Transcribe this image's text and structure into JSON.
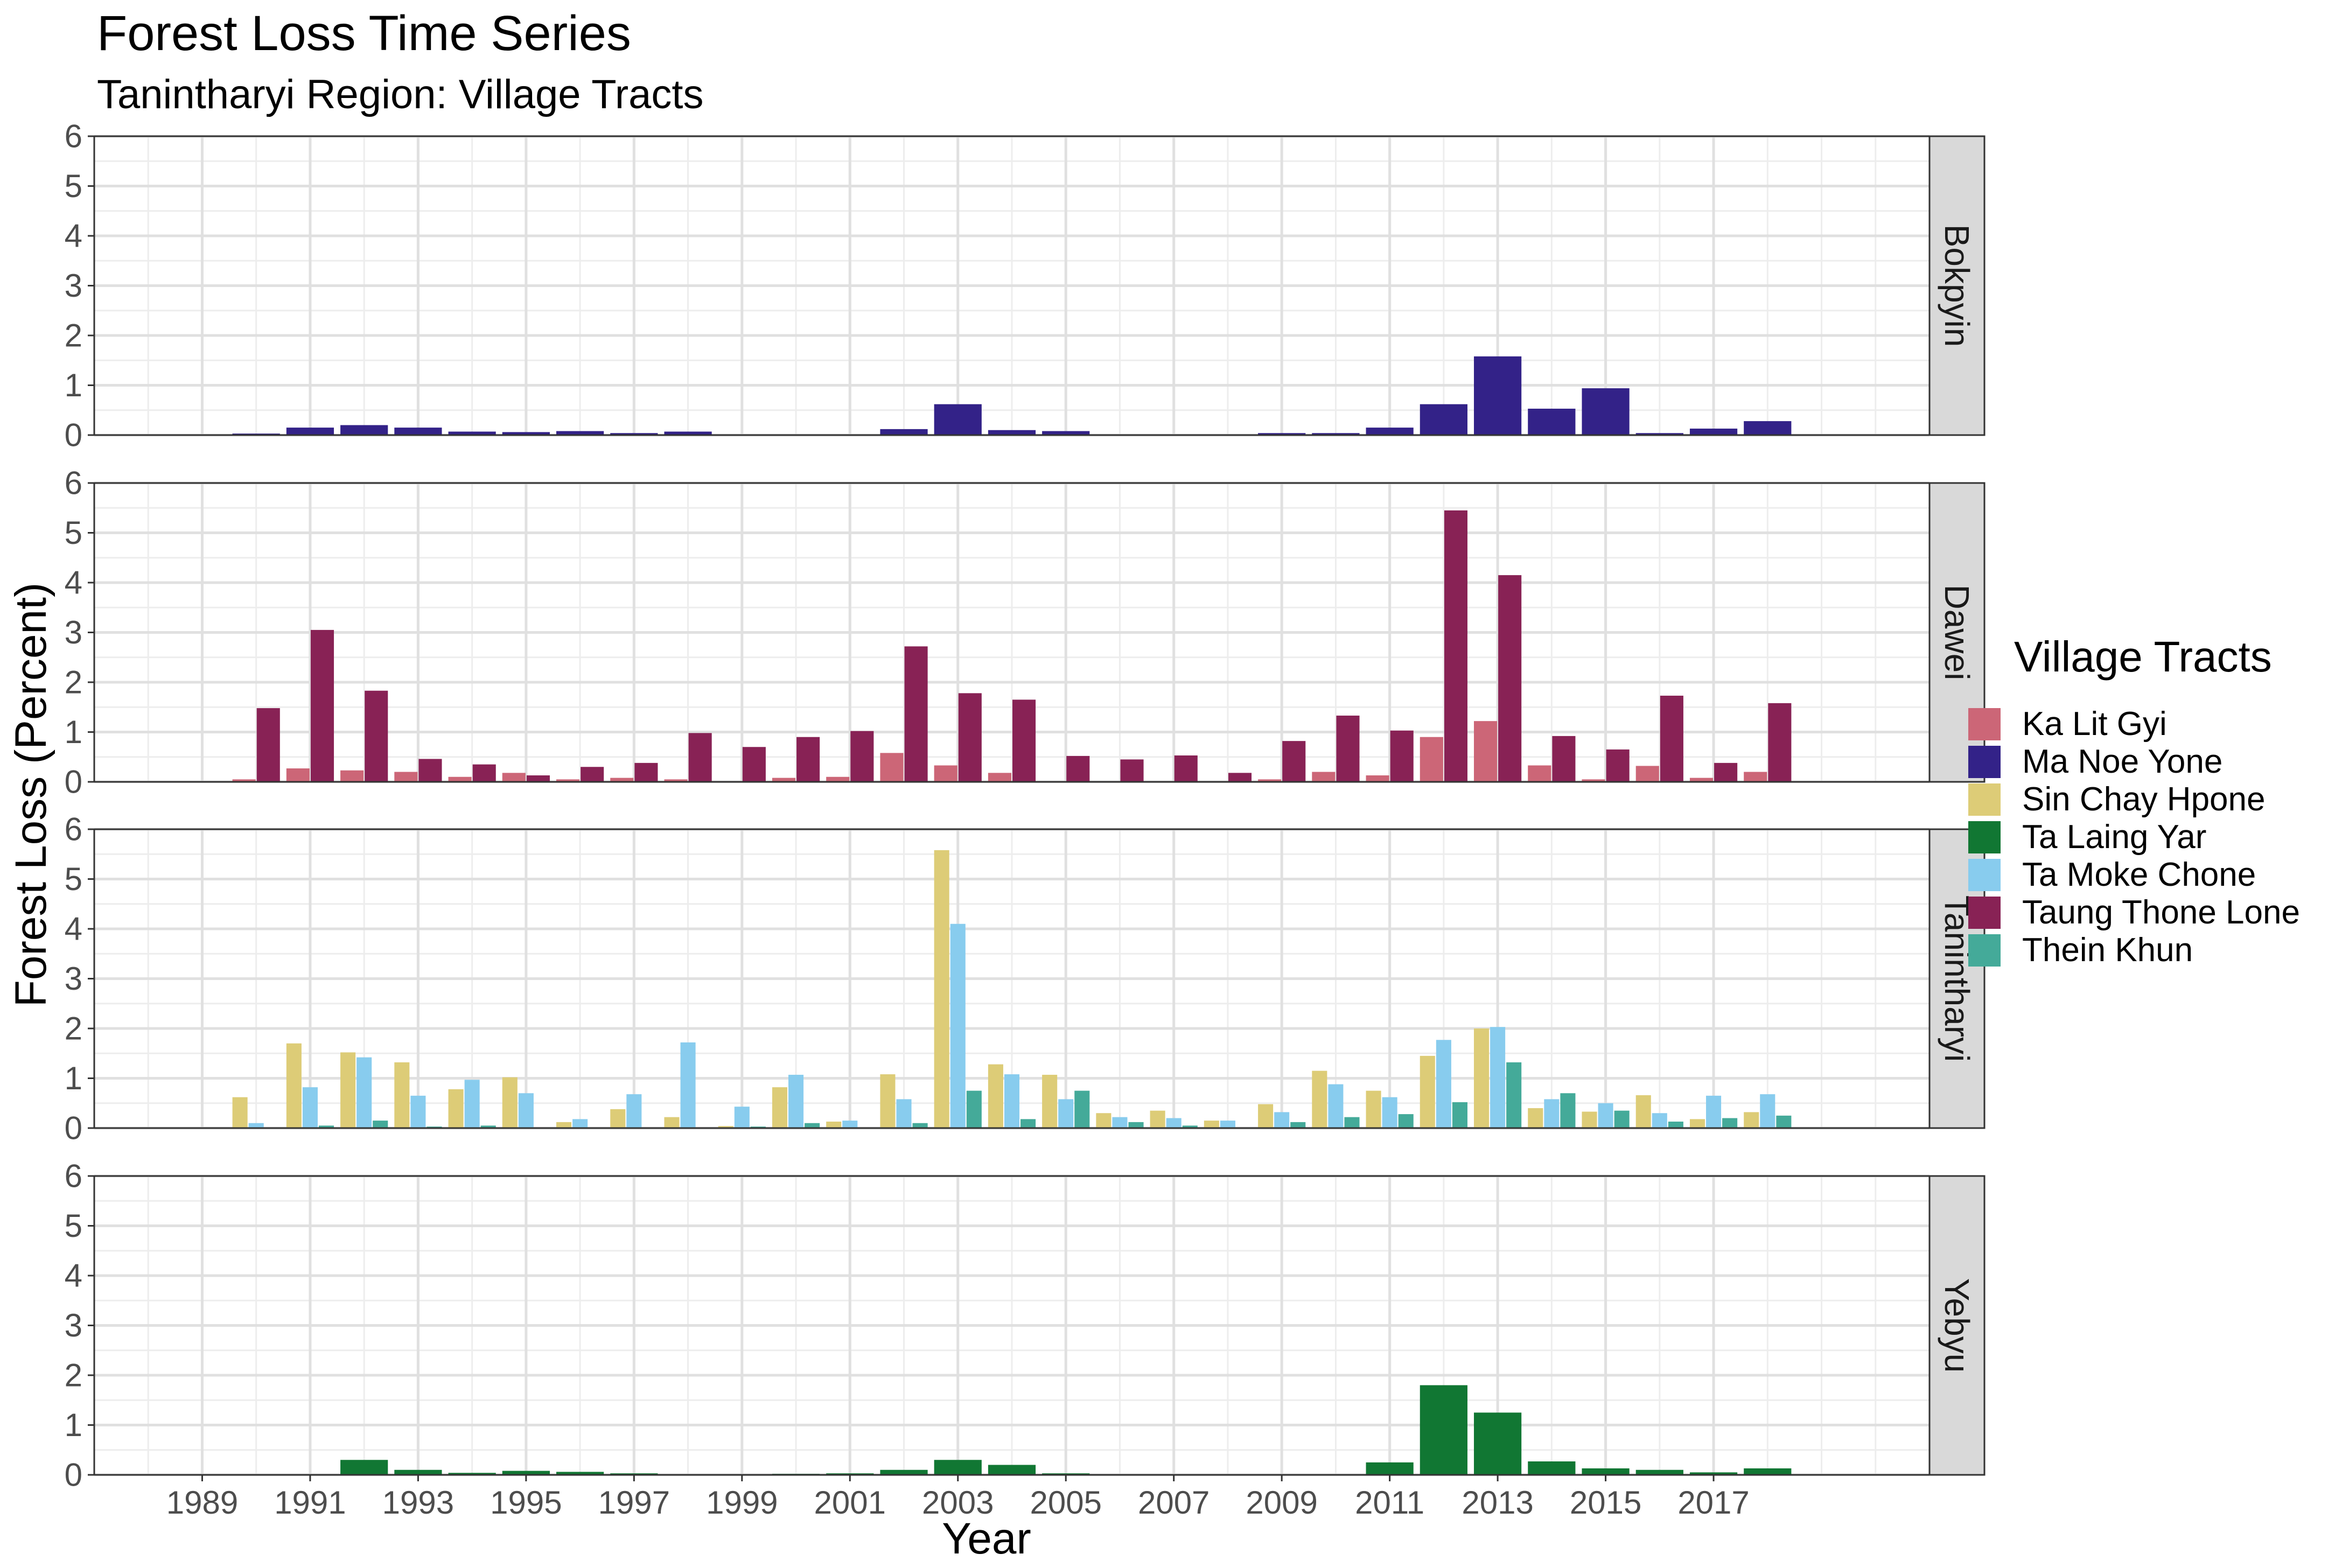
{
  "chart_data": {
    "type": "bar",
    "title": "Forest Loss Time Series",
    "subtitle": "Tanintharyi Region: Village Tracts",
    "xlabel": "Year",
    "ylabel": "Forest Loss (Percent)",
    "x_tick_labels": [
      "1989",
      "1991",
      "1993",
      "1995",
      "1997",
      "1999",
      "2001",
      "2003",
      "2005",
      "2007",
      "2009",
      "2011",
      "2013",
      "2015",
      "2017"
    ],
    "y_tick_labels": [
      "0",
      "1",
      "2",
      "3",
      "4",
      "5",
      "6"
    ],
    "ylim": [
      0,
      6
    ],
    "xlim": [
      1987,
      2021
    ],
    "grid": true,
    "legend": {
      "title": "Village Tracts",
      "position": "right"
    },
    "series": [
      {
        "name": "Ka Lit Gyi",
        "color": "#CC6677"
      },
      {
        "name": "Ma Noe Yone",
        "color": "#332288"
      },
      {
        "name": "Sin Chay Hpone",
        "color": "#DDCC77"
      },
      {
        "name": "Ta Laing Yar",
        "color": "#117733"
      },
      {
        "name": "Ta Moke Chone",
        "color": "#88CCEE"
      },
      {
        "name": "Taung Thone Lone",
        "color": "#882255"
      },
      {
        "name": "Thein Khun",
        "color": "#44AA99"
      }
    ],
    "facets": [
      {
        "name": "Bokpyin",
        "bars": [
          {
            "series": "Ma Noe Yone",
            "years": [
              1990,
              1991,
              1992,
              1993,
              1994,
              1995,
              1996,
              1997,
              1998,
              2002,
              2003,
              2004,
              2005,
              2009,
              2010,
              2011,
              2012,
              2013,
              2014,
              2015,
              2016,
              2017,
              2018
            ],
            "values": [
              0.03,
              0.15,
              0.2,
              0.15,
              0.07,
              0.06,
              0.08,
              0.04,
              0.07,
              0.12,
              0.62,
              0.1,
              0.08,
              0.04,
              0.04,
              0.15,
              0.62,
              1.58,
              0.53,
              0.94,
              0.04,
              0.13,
              0.28
            ]
          }
        ]
      },
      {
        "name": "Dawei",
        "bars": [
          {
            "series": "Ka Lit Gyi",
            "years": [
              1990,
              1991,
              1992,
              1993,
              1994,
              1995,
              1996,
              1997,
              1998,
              2000,
              2001,
              2002,
              2003,
              2004,
              2009,
              2010,
              2011,
              2012,
              2013,
              2014,
              2015,
              2016,
              2017,
              2018
            ],
            "values": [
              0.05,
              0.27,
              0.23,
              0.2,
              0.1,
              0.18,
              0.05,
              0.08,
              0.05,
              0.08,
              0.1,
              0.58,
              0.33,
              0.18,
              0.05,
              0.2,
              0.13,
              0.9,
              1.22,
              0.33,
              0.05,
              0.32,
              0.08,
              0.2
            ]
          },
          {
            "series": "Taung Thone Lone",
            "years": [
              1990,
              1991,
              1992,
              1993,
              1994,
              1995,
              1996,
              1997,
              1998,
              1999,
              2000,
              2001,
              2002,
              2003,
              2004,
              2005,
              2006,
              2007,
              2008,
              2009,
              2010,
              2011,
              2012,
              2013,
              2014,
              2015,
              2016,
              2017,
              2018
            ],
            "values": [
              1.48,
              3.05,
              1.83,
              0.46,
              0.35,
              0.13,
              0.3,
              0.38,
              0.98,
              0.7,
              0.9,
              1.02,
              2.72,
              1.78,
              1.65,
              0.52,
              0.45,
              0.53,
              0.18,
              0.82,
              1.33,
              1.03,
              5.45,
              4.15,
              0.92,
              0.65,
              1.73,
              0.38,
              1.58
            ]
          }
        ]
      },
      {
        "name": "Tanintharyi",
        "bars": [
          {
            "series": "Sin Chay Hpone",
            "years": [
              1990,
              1991,
              1992,
              1993,
              1994,
              1995,
              1996,
              1997,
              1998,
              1999,
              2000,
              2001,
              2002,
              2003,
              2004,
              2005,
              2006,
              2007,
              2008,
              2009,
              2010,
              2011,
              2012,
              2013,
              2014,
              2015,
              2016,
              2017,
              2018
            ],
            "values": [
              0.62,
              1.7,
              1.52,
              1.32,
              0.78,
              1.02,
              0.12,
              0.38,
              0.22,
              0.04,
              0.82,
              0.13,
              1.08,
              5.58,
              1.28,
              1.07,
              0.3,
              0.35,
              0.15,
              0.48,
              1.15,
              0.75,
              1.45,
              2.0,
              0.4,
              0.33,
              0.66,
              0.18,
              0.32
            ]
          },
          {
            "series": "Ta Moke Chone",
            "years": [
              1990,
              1991,
              1992,
              1993,
              1994,
              1995,
              1996,
              1997,
              1998,
              1999,
              2000,
              2001,
              2002,
              2003,
              2004,
              2005,
              2006,
              2007,
              2008,
              2009,
              2010,
              2011,
              2012,
              2013,
              2014,
              2015,
              2016,
              2017,
              2018
            ],
            "values": [
              0.1,
              0.82,
              1.42,
              0.65,
              0.97,
              0.7,
              0.18,
              0.68,
              1.72,
              0.43,
              1.07,
              0.15,
              0.58,
              4.1,
              1.08,
              0.58,
              0.22,
              0.2,
              0.15,
              0.32,
              0.88,
              0.62,
              1.77,
              2.03,
              0.58,
              0.5,
              0.3,
              0.65,
              0.68
            ]
          },
          {
            "series": "Thein Khun",
            "years": [
              1991,
              1992,
              1993,
              1994,
              1999,
              2000,
              2002,
              2003,
              2004,
              2005,
              2006,
              2007,
              2009,
              2010,
              2011,
              2012,
              2013,
              2014,
              2015,
              2016,
              2017,
              2018
            ],
            "values": [
              0.05,
              0.15,
              0.03,
              0.05,
              0.03,
              0.1,
              0.1,
              0.75,
              0.18,
              0.75,
              0.12,
              0.05,
              0.12,
              0.22,
              0.28,
              0.52,
              1.32,
              0.7,
              0.35,
              0.13,
              0.2,
              0.25
            ]
          }
        ]
      },
      {
        "name": "Yebyu",
        "bars": [
          {
            "series": "Ta Laing Yar",
            "years": [
              1992,
              1993,
              1994,
              1995,
              1996,
              1997,
              2000,
              2001,
              2002,
              2003,
              2004,
              2005,
              2011,
              2012,
              2013,
              2014,
              2015,
              2016,
              2017,
              2018
            ],
            "values": [
              0.3,
              0.1,
              0.04,
              0.08,
              0.06,
              0.03,
              0.02,
              0.03,
              0.1,
              0.3,
              0.2,
              0.03,
              0.25,
              1.8,
              1.25,
              0.27,
              0.13,
              0.1,
              0.05,
              0.13
            ]
          }
        ]
      }
    ]
  }
}
